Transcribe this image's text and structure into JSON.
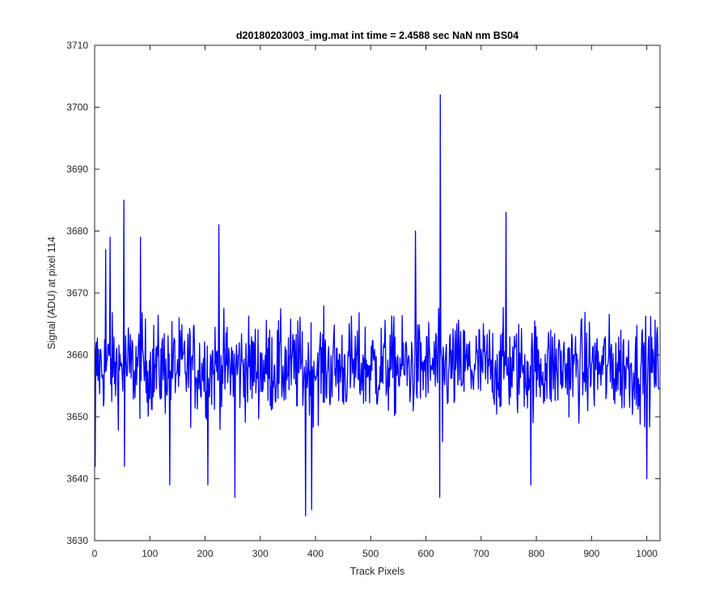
{
  "chart_data": {
    "type": "line",
    "title": "d20180203003_img.mat int time = 2.4588 sec  NaN nm BS04",
    "xlabel": "Track Pixels",
    "ylabel": "Signal (ADU) at pixel 114",
    "xlim": [
      0,
      1024
    ],
    "ylim": [
      3630,
      3710
    ],
    "xticks": [
      0,
      100,
      200,
      300,
      400,
      500,
      600,
      700,
      800,
      900,
      1000
    ],
    "yticks": [
      3630,
      3640,
      3650,
      3660,
      3670,
      3680,
      3690,
      3700,
      3710
    ],
    "grid": false,
    "box": true,
    "series": [
      {
        "color": "#0000ff",
        "baseline": 3658,
        "noise_amplitude": 7,
        "num_points": 1024,
        "approximate": true,
        "peaks": [
          {
            "x": 1,
            "y": 3642
          },
          {
            "x": 20,
            "y": 3677
          },
          {
            "x": 28,
            "y": 3679
          },
          {
            "x": 53,
            "y": 3685
          },
          {
            "x": 54,
            "y": 3642
          },
          {
            "x": 83,
            "y": 3679
          },
          {
            "x": 136,
            "y": 3639
          },
          {
            "x": 205,
            "y": 3639
          },
          {
            "x": 225,
            "y": 3681
          },
          {
            "x": 254,
            "y": 3637
          },
          {
            "x": 382,
            "y": 3634
          },
          {
            "x": 393,
            "y": 3635
          },
          {
            "x": 581,
            "y": 3680
          },
          {
            "x": 625,
            "y": 3637
          },
          {
            "x": 626,
            "y": 3702
          },
          {
            "x": 630,
            "y": 3646
          },
          {
            "x": 745,
            "y": 3683
          },
          {
            "x": 790,
            "y": 3639
          },
          {
            "x": 1000,
            "y": 3640
          }
        ]
      }
    ]
  }
}
